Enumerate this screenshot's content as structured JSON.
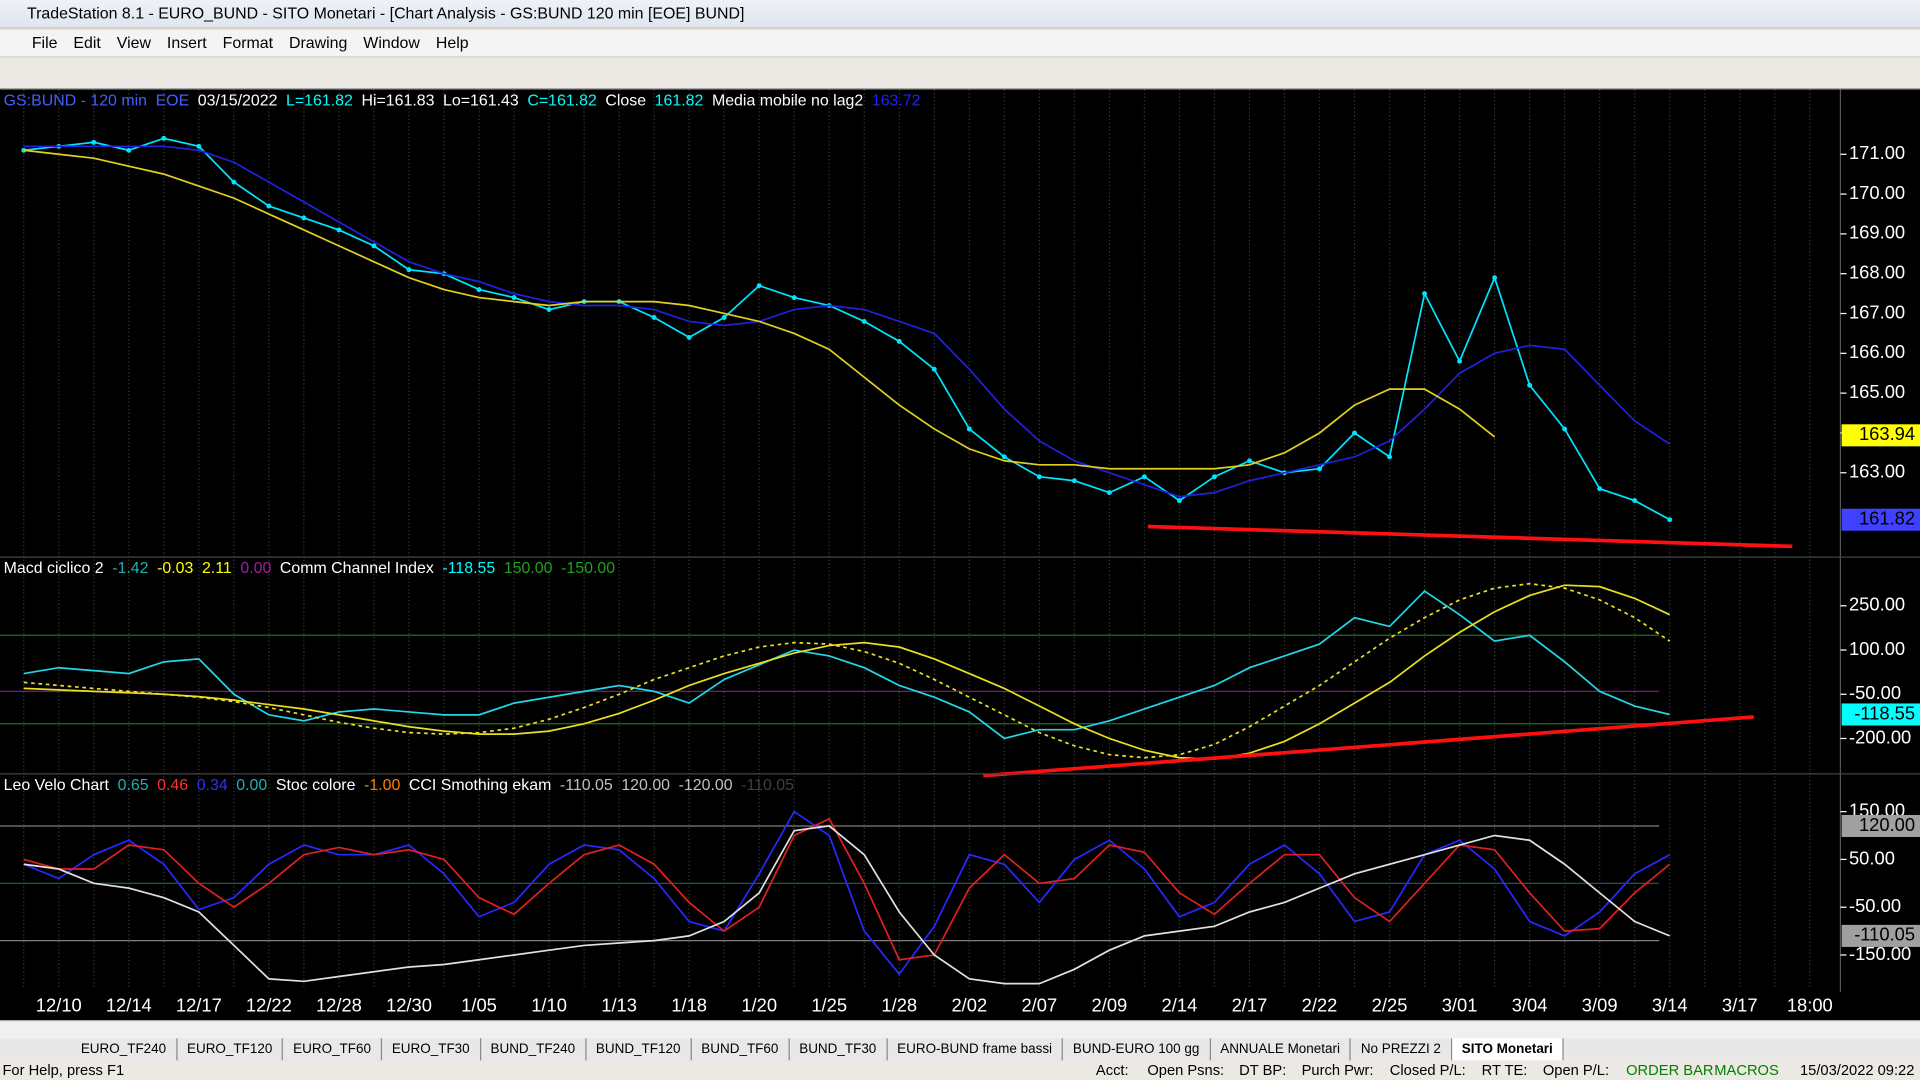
{
  "window": {
    "title": "TradeStation 8.1 - EURO_BUND - SITO Monetari - [Chart Analysis - GS:BUND  120 min  [EOE] BUND]"
  },
  "menu": [
    "File",
    "Edit",
    "View",
    "Insert",
    "Format",
    "Drawing",
    "Window",
    "Help"
  ],
  "tabs": {
    "items": [
      "EURO_TF240",
      "EURO_TF120",
      "EURO_TF60",
      "EURO_TF30",
      "BUND_TF240",
      "BUND_TF120",
      "BUND_TF60",
      "BUND_TF30",
      "EURO-BUND frame bassi",
      "BUND-EURO 100 gg",
      "ANNUALE Monetari",
      "No PREZZI 2",
      "SITO Monetari"
    ],
    "active": 12
  },
  "status": {
    "help": "For Help, press F1",
    "fields": [
      "Acct:",
      "Open Psns:",
      "DT BP:",
      "Purch Pwr:",
      "Closed P/L:",
      "RT TE:",
      "Open P/L:"
    ],
    "order_bar": "ORDER BAR",
    "macros": "MACROS",
    "datetime": "15/03/2022 09:22"
  },
  "chart_data": [
    {
      "type": "line",
      "header": [
        {
          "text": "GS:BUND - 120 min",
          "color": "#4060ff"
        },
        {
          "text": "EOE",
          "color": "#4060ff"
        },
        {
          "text": "03/15/2022",
          "color": "#ffffff"
        },
        {
          "text": "L=161.82",
          "color": "#00ffff"
        },
        {
          "text": "Hi=161.83",
          "color": "#ffffff"
        },
        {
          "text": "Lo=161.43",
          "color": "#ffffff"
        },
        {
          "text": "C=161.82",
          "color": "#00ffff"
        },
        {
          "text": "Close",
          "color": "#ffffff"
        },
        {
          "text": "161.82",
          "color": "#00ffff"
        },
        {
          "text": "Media mobile no lag2",
          "color": "#ffffff"
        },
        {
          "text": "163.72",
          "color": "#2020ff"
        }
      ],
      "categories": [
        null,
        "12/10",
        null,
        "12/14",
        null,
        "12/17",
        null,
        "12/22",
        null,
        "12/28",
        null,
        "12/30",
        null,
        "1/05",
        null,
        "1/10",
        null,
        "1/13",
        null,
        "1/18",
        null,
        "1/20",
        null,
        "1/25",
        null,
        "1/28",
        null,
        "2/02",
        null,
        "2/07",
        null,
        "2/09",
        null,
        "2/14",
        null,
        "2/17",
        null,
        "2/22",
        null,
        "2/25",
        null,
        "3/01",
        null,
        "3/04",
        null,
        "3/09",
        null,
        "3/14",
        null,
        "3/17",
        null,
        "18:00"
      ],
      "ylim": [
        160.88,
        172.63
      ],
      "yticks": [
        {
          "value": 163,
          "label": "163.00"
        },
        {
          "value": 164,
          "label": "164.00"
        },
        {
          "value": 165,
          "label": "165.00"
        },
        {
          "value": 166,
          "label": "166.00"
        },
        {
          "value": 167,
          "label": "167.00"
        },
        {
          "value": 168,
          "label": "168.00"
        },
        {
          "value": 169,
          "label": "169.00"
        },
        {
          "value": 170,
          "label": "170.00"
        },
        {
          "value": 171,
          "label": "171.00"
        }
      ],
      "series": [
        {
          "name": "Close",
          "color": "#00e5ff",
          "markers": true,
          "values": [
            171.1,
            171.2,
            171.3,
            171.1,
            171.4,
            171.2,
            170.3,
            169.7,
            169.4,
            169.1,
            168.7,
            168.1,
            168.0,
            167.6,
            167.4,
            167.1,
            167.3,
            167.3,
            166.9,
            166.4,
            166.9,
            167.7,
            167.4,
            167.2,
            166.8,
            166.3,
            165.6,
            164.1,
            163.4,
            162.9,
            162.8,
            162.5,
            162.9,
            162.3,
            162.9,
            163.3,
            163.0,
            163.1,
            164.0,
            163.4,
            167.5,
            165.8,
            167.9,
            165.2,
            164.1,
            162.6,
            162.3,
            161.82,
            null,
            null,
            null,
            null
          ]
        },
        {
          "name": "Media mobile no lag2",
          "color": "#2020e0",
          "values": [
            171.2,
            171.2,
            171.2,
            171.2,
            171.2,
            171.1,
            170.8,
            170.3,
            169.8,
            169.3,
            168.8,
            168.3,
            168.0,
            167.8,
            167.5,
            167.3,
            167.2,
            167.2,
            167.1,
            166.8,
            166.7,
            166.8,
            167.1,
            167.2,
            167.1,
            166.8,
            166.5,
            165.6,
            164.6,
            163.8,
            163.3,
            163.0,
            162.7,
            162.4,
            162.5,
            162.8,
            163.0,
            163.2,
            163.4,
            163.8,
            164.6,
            165.5,
            166.0,
            166.2,
            166.1,
            165.2,
            164.3,
            163.72,
            null,
            null,
            null,
            null
          ]
        },
        {
          "name": "Media",
          "color": "#e0d020",
          "values": [
            171.1,
            171.0,
            170.9,
            170.7,
            170.5,
            170.2,
            169.9,
            169.5,
            169.1,
            168.7,
            168.3,
            167.9,
            167.6,
            167.4,
            167.3,
            167.2,
            167.3,
            167.3,
            167.3,
            167.2,
            167.0,
            166.8,
            166.5,
            166.1,
            165.4,
            164.7,
            164.1,
            163.6,
            163.3,
            163.2,
            163.2,
            163.1,
            163.1,
            163.1,
            163.1,
            163.2,
            163.5,
            164.0,
            164.7,
            165.1,
            165.1,
            164.6,
            163.9,
            null,
            null,
            null,
            null,
            null,
            null,
            null,
            null,
            null
          ]
        }
      ],
      "trendlines": [
        {
          "color": "#ff1010",
          "values": [
            161.65,
            161.15
          ]
        }
      ],
      "last_labels": [
        {
          "value": 163.94,
          "label": "163.94",
          "color": "#ffff00"
        },
        {
          "value": 161.82,
          "label": "161.82",
          "color": "#4040ff"
        }
      ]
    },
    {
      "type": "line",
      "header": [
        {
          "text": "Macd ciclico 2",
          "color": "#ffffff"
        },
        {
          "text": "-1.42",
          "color": "#20b0b0"
        },
        {
          "text": "-0.03",
          "color": "#ffff00"
        },
        {
          "text": "2.11",
          "color": "#ffff00"
        },
        {
          "text": "0.00",
          "color": "#a020a0"
        },
        {
          "text": "Comm Channel Index",
          "color": "#ffffff"
        },
        {
          "text": "-118.55",
          "color": "#00ffff"
        },
        {
          "text": "150.00",
          "color": "#20a020"
        },
        {
          "text": "-150.00",
          "color": "#20a020"
        }
      ],
      "ylim": [
        -320,
        415
      ],
      "yticks": [
        {
          "value": -200,
          "label": "-200.00"
        },
        {
          "value": -50,
          "label": "-50.00"
        },
        {
          "value": 100,
          "label": "100.00"
        },
        {
          "value": 250,
          "label": "250.00"
        }
      ],
      "levels": [
        {
          "value": 150,
          "color": "#1e6e1e"
        },
        {
          "value": -150,
          "color": "#1e6e1e"
        },
        {
          "value": -40,
          "color": "#8b1a8b"
        }
      ],
      "series": [
        {
          "name": "Comm Channel Index",
          "color": "#20d8e8",
          "values": [
            20,
            40,
            30,
            20,
            60,
            70,
            -50,
            -120,
            -140,
            -110,
            -100,
            -110,
            -120,
            -120,
            -80,
            -60,
            -40,
            -20,
            -40,
            -80,
            0,
            50,
            100,
            80,
            40,
            -20,
            -60,
            -110,
            -200,
            -170,
            -170,
            -140,
            -100,
            -60,
            -20,
            40,
            80,
            120,
            210,
            180,
            300,
            220,
            130,
            150,
            60,
            -40,
            -90,
            -118.55,
            null,
            null,
            null,
            null
          ]
        },
        {
          "name": "Macd ciclico 2",
          "color": "#e8e020",
          "values": [
            -30,
            -35,
            -40,
            -45,
            -50,
            -58,
            -70,
            -85,
            -100,
            -120,
            -140,
            -160,
            -175,
            -185,
            -185,
            -175,
            -150,
            -115,
            -70,
            -20,
            20,
            55,
            90,
            115,
            125,
            110,
            70,
            20,
            -30,
            -90,
            -150,
            -200,
            -240,
            -265,
            -270,
            -250,
            -210,
            -150,
            -80,
            -10,
            80,
            160,
            230,
            285,
            320,
            315,
            275,
            220,
            null,
            null,
            null,
            null
          ]
        },
        {
          "name": "Signal",
          "color": "#e8e020",
          "dash": true,
          "values": [
            -10,
            -20,
            -30,
            -40,
            -50,
            -60,
            -75,
            -95,
            -120,
            -145,
            -165,
            -180,
            -185,
            -180,
            -165,
            -135,
            -95,
            -50,
            0,
            40,
            80,
            110,
            125,
            120,
            95,
            55,
            0,
            -60,
            -120,
            -180,
            -225,
            -255,
            -265,
            -255,
            -220,
            -160,
            -90,
            -20,
            60,
            140,
            210,
            270,
            310,
            325,
            310,
            270,
            210,
            130,
            null,
            null,
            null,
            null
          ]
        }
      ],
      "trendlines": [
        {
          "color": "#ff1010",
          "values": [
            -326,
            -127
          ]
        }
      ],
      "last_labels": [
        {
          "value": -118.55,
          "label": "-118.55",
          "color": "#00ffff"
        }
      ]
    },
    {
      "type": "line",
      "header": [
        {
          "text": "Leo Velo Chart",
          "color": "#ffffff"
        },
        {
          "text": "0.65",
          "color": "#20b0b0"
        },
        {
          "text": "0.46",
          "color": "#ff3030"
        },
        {
          "text": "0.34",
          "color": "#3030ff"
        },
        {
          "text": "0.00",
          "color": "#20b0b0"
        },
        {
          "text": "Stoc colore",
          "color": "#ffffff"
        },
        {
          "text": "-1.00",
          "color": "#ff8000"
        },
        {
          "text": "CCI Smothing ekam",
          "color": "#ffffff"
        },
        {
          "text": "-110.05",
          "color": "#c0c0c0"
        },
        {
          "text": "120.00",
          "color": "#c0c0c0"
        },
        {
          "text": "-120.00",
          "color": "#c0c0c0"
        },
        {
          "text": "-110.05",
          "color": "#404040"
        }
      ],
      "ylim": [
        -222,
        229
      ],
      "yticks": [
        {
          "value": -150,
          "label": "-150.00"
        },
        {
          "value": -50,
          "label": "-50.00"
        },
        {
          "value": 50,
          "label": "50.00"
        },
        {
          "value": 150,
          "label": "150.00"
        }
      ],
      "levels": [
        {
          "value": 120,
          "color": "#808080"
        },
        {
          "value": -120,
          "color": "#808080"
        },
        {
          "value": 0,
          "color": "#206060"
        }
      ],
      "series": [
        {
          "name": "Leo Velo Chart",
          "color": "#2828ff",
          "values": [
            40,
            10,
            60,
            90,
            40,
            -55,
            -30,
            40,
            80,
            60,
            60,
            80,
            20,
            -70,
            -40,
            40,
            80,
            70,
            10,
            -80,
            -100,
            20,
            150,
            100,
            -100,
            -190,
            -90,
            60,
            40,
            -40,
            50,
            90,
            30,
            -70,
            -40,
            40,
            80,
            20,
            -80,
            -60,
            60,
            90,
            30,
            -80,
            -110,
            -60,
            20,
            60,
            null,
            null,
            null,
            null
          ]
        },
        {
          "name": "Signal",
          "color": "#e02020",
          "values": [
            50,
            30,
            30,
            80,
            70,
            0,
            -50,
            0,
            60,
            75,
            60,
            70,
            50,
            -30,
            -65,
            0,
            60,
            80,
            40,
            -40,
            -100,
            -50,
            100,
            135,
            0,
            -160,
            -150,
            -10,
            60,
            0,
            10,
            80,
            65,
            -20,
            -65,
            0,
            60,
            60,
            -30,
            -80,
            0,
            80,
            70,
            -20,
            -100,
            -95,
            -20,
            40,
            null,
            null,
            null,
            null
          ]
        },
        {
          "name": "CCI Smothing ekam",
          "color": "#e0e0e0",
          "values": [
            40,
            30,
            0,
            -10,
            -30,
            -60,
            -130,
            -200,
            -205,
            -195,
            -185,
            -175,
            -170,
            -160,
            -150,
            -140,
            -130,
            -125,
            -120,
            -110,
            -80,
            -20,
            110,
            120,
            60,
            -60,
            -150,
            -200,
            -210,
            -210,
            -180,
            -140,
            -110,
            -100,
            -90,
            -60,
            -40,
            -10,
            20,
            40,
            60,
            80,
            100,
            90,
            40,
            -20,
            -80,
            -110.05,
            null,
            null,
            null,
            null
          ]
        }
      ],
      "last_labels": [
        {
          "value": 120,
          "label": "120.00",
          "color": "#a0a0a0"
        },
        {
          "value": -110.05,
          "label": "-110.05",
          "color": "#a0a0a0"
        }
      ]
    }
  ]
}
